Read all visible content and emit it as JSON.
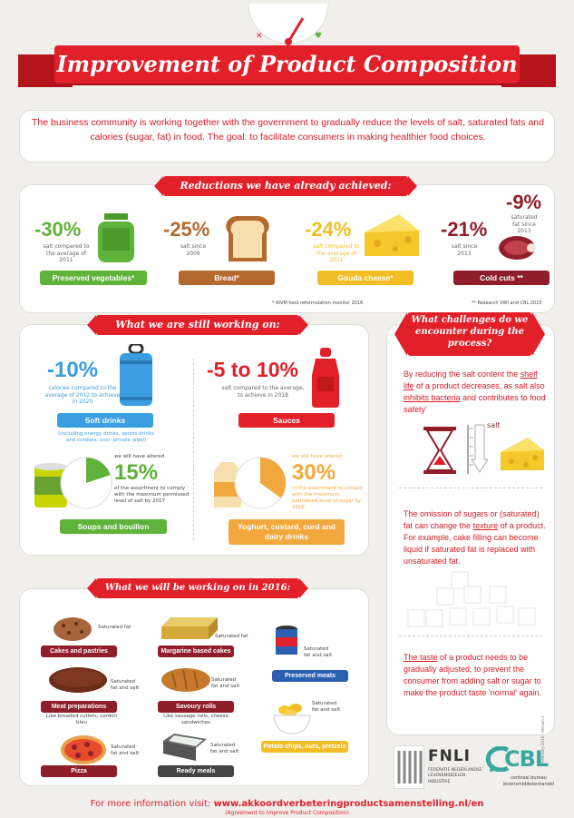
{
  "title": "Improvement of Product Composition",
  "intro": "The business community is working together with the government to gradually reduce the levels of salt, saturated fats and calories (sugar, fat) in food. The goal: to facilitate consumers in making healthier food choices.",
  "achieved": {
    "heading": "Reductions we have already achieved:",
    "items": [
      {
        "pct": "-30%",
        "sub": "salt compared to the average of 2011",
        "label": "Preserved vegetables*",
        "color": "#5fb23a"
      },
      {
        "pct": "-25%",
        "sub": "salt since 2009",
        "label": "Bread*",
        "color": "#b4692f"
      },
      {
        "pct": "-24%",
        "sub": "salt compared to the average of 2011",
        "label": "Gouda cheese*",
        "color": "#f3be25"
      },
      {
        "pct": "-21%",
        "sub": "salt since 2013",
        "pct2": "-9%",
        "sub2": "saturated fat since 2013",
        "label": "Cold cuts **",
        "color": "#8f1e2a"
      }
    ],
    "foot1": "* RIVM food reformulation monitor 2016",
    "foot2": "** Research VWI and CBL 2015"
  },
  "working": {
    "heading": "What we are still working on:",
    "soft": {
      "pct": "-10%",
      "sub": "calories compared to the average of 2012 to achieve in 2020",
      "label": "Soft drinks",
      "note": "(including energy drinks, sports drinks and cordials, excl. private label)"
    },
    "sauces": {
      "pct": "-5 to 10%",
      "sub": "salt compared to the average, to achieve in 2018",
      "label": "Sauces"
    },
    "soups": {
      "top": "we will have altered",
      "pct": "15%",
      "sub": "of the assortment to comply with the maximum permissed level of salt by 2017",
      "label": "Soups and bouillon"
    },
    "yoghurt": {
      "top": "we will have altered",
      "pct": "30%",
      "sub": "of the assortment to comply with the maximum permissed level of sugar by 2018",
      "label": "Yoghurt, custard, curd and dairy drinks"
    }
  },
  "year2016": {
    "heading": "What we will be working on in 2016:",
    "items": [
      {
        "label": "Cakes and pastries",
        "note": "Saturated fat"
      },
      {
        "label": "Margarine based cakes",
        "note": "Saturated fat"
      },
      {
        "label": "Preserved meats",
        "note": "Saturated fat and salt"
      },
      {
        "label": "Meat preparations",
        "note": "Saturated fat and salt",
        "extra": "Like breaded cutlets, cordon bleu"
      },
      {
        "label": "Savoury rolls",
        "note": "Saturated fat and salt",
        "extra": "Like sausage rolls, cheese sandwiches"
      },
      {
        "label": "Potato chips, nuts, pretzels",
        "note": "Saturated fat and salt"
      },
      {
        "label": "Pizza",
        "note": "Saturated fat and salt"
      },
      {
        "label": "Ready meals",
        "note": "Saturated fat and salt"
      }
    ]
  },
  "challenges": {
    "heading": "What challenges do we encounter during the process?",
    "p1": {
      "a": "By reducing the salt content the ",
      "u1": "shelf life",
      "b": " of a product decreases, as salt also ",
      "u2": "inhibits bacteria",
      "c": " and contributes to food safety'"
    },
    "salt_label": "salt",
    "p2": {
      "a": "The omission of sugars or (saturated) fat can change the ",
      "u1": "texture",
      "b": " of a product. For example, cake filling can become liquid if saturated fat is replaced with unsaturated fat."
    },
    "p3": {
      "u1": "The taste",
      "a": " of a product needs to be gradually adjusted, to prevent the consumer from adding salt or sugar to make the product taste 'normal' again."
    }
  },
  "logos": {
    "fnli": "FNLI",
    "fnli_sub": "FEDERATIE NEDERLANDSE LEVENSMIDDELEN INDUSTRIE",
    "cbl": "CBL",
    "cbl_sub": "centraal bureau levensmiddelenhandel"
  },
  "footer": {
    "prefix": "For more information visit: ",
    "url": "www.akkoordverbeteringproductsamenstelling.nl/en",
    "sub": "(Agreement to Improve Product Composition)",
    "side": "February 2016 - Version 2"
  }
}
